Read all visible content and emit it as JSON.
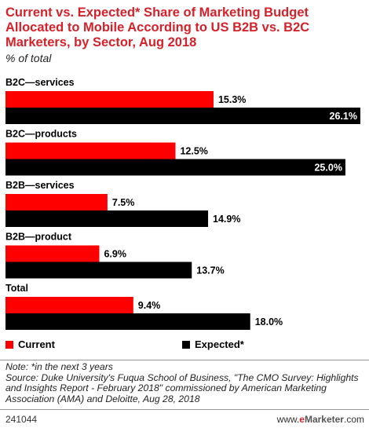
{
  "title": "Current vs. Expected* Share of Marketing Budget Allocated to Mobile According to US B2B vs. B2C Marketers, by Sector, Aug 2018",
  "subtitle": "% of total",
  "colors": {
    "current": "#ff0000",
    "expected": "#000000",
    "title": "#d4222b"
  },
  "chart_data": {
    "type": "bar",
    "orientation": "horizontal",
    "categories": [
      "B2C—services",
      "B2C—products",
      "B2B—services",
      "B2B—product",
      "Total"
    ],
    "series": [
      {
        "name": "Current",
        "values": [
          15.3,
          12.5,
          7.5,
          6.9,
          9.4
        ],
        "labels": [
          "15.3%",
          "12.5%",
          "7.5%",
          "6.9%",
          "9.4%"
        ]
      },
      {
        "name": "Expected*",
        "values": [
          26.1,
          25.0,
          14.9,
          13.7,
          18.0
        ],
        "labels": [
          "26.1%",
          "25.0%",
          "14.9%",
          "13.7%",
          "18.0%"
        ]
      }
    ],
    "xlim": [
      0,
      26.1
    ],
    "grid": false,
    "legend": "bottom"
  },
  "legend": {
    "current": "Current",
    "expected": "Expected*"
  },
  "note": "Note: *in the next 3 years",
  "source": "Source: Duke University's Fuqua School of Business, \"The CMO Survey: Highlights and Insights Report - February 2018\" commissioned by American Marketing Association (AMA) and Deloitte, Aug 28, 2018",
  "footer": {
    "id": "241044",
    "brand_prefix": "www.",
    "brand_e": "e",
    "brand_name": "Marketer",
    "brand_suffix": ".com"
  }
}
